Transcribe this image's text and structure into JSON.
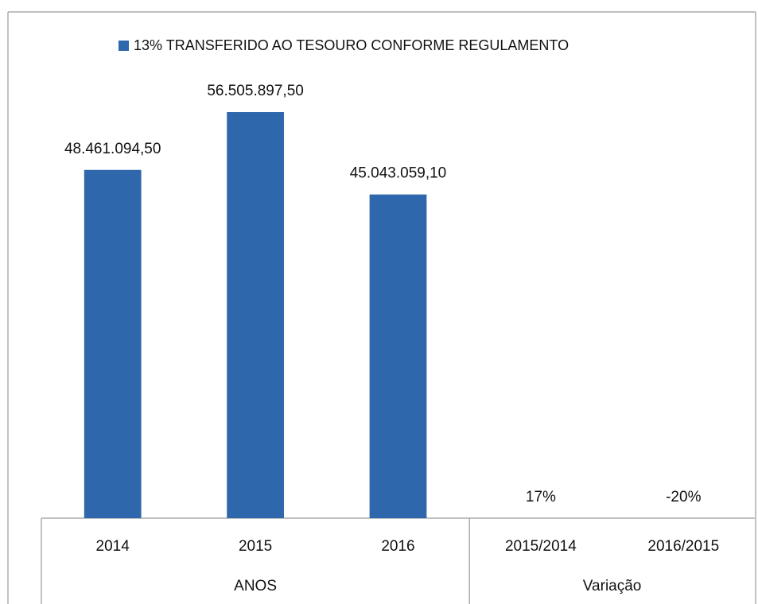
{
  "chart_data": {
    "type": "bar",
    "legend": "13% TRANSFERIDO AO TESOURO CONFORME REGULAMENTO",
    "color": "#2e67ac",
    "categories": [
      "2014",
      "2015",
      "2016",
      "2015/2014",
      "2016/2015"
    ],
    "values": [
      48461094.5,
      56505897.5,
      45043059.1,
      17,
      -20
    ],
    "value_labels": [
      "48.461.094,50",
      "56.505.897,50",
      "45.043.059,10",
      "17%",
      "-20%"
    ],
    "groups": [
      {
        "label": "ANOS",
        "span": 3
      },
      {
        "label": "Variação",
        "span": 2
      }
    ],
    "ylim": [
      0,
      70000000
    ]
  }
}
